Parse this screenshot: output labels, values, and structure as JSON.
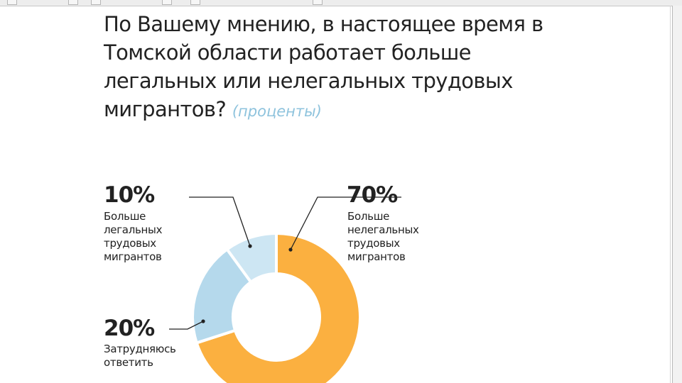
{
  "window": {
    "toolbar_icons": [
      "toolbar-icon",
      "toolbar-icon",
      "toolbar-icon",
      "toolbar-icon",
      "toolbar-icon",
      "toolbar-icon"
    ]
  },
  "slide": {
    "title": "По Вашему мнению, в настоящее время в Томской области работает больше легальных или нелегальных трудовых мигрантов?",
    "unit": "(проценты)"
  },
  "chart_data": {
    "type": "pie",
    "style": "donut",
    "title": "По Вашему мнению, в настоящее время в Томской области работает больше легальных или нелегальных трудовых мигрантов?",
    "unit": "(проценты)",
    "slices": [
      {
        "label": "Больше нелегальных трудовых мигрантов",
        "value": 70,
        "display": "70%",
        "color": "#fbb040"
      },
      {
        "label": "Затрудняюсь ответить",
        "value": 20,
        "display": "20%",
        "color": "#b5d9ec"
      },
      {
        "label": "Больше легальных трудовых мигрантов",
        "value": 10,
        "display": "10%",
        "color": "#cde6f3"
      }
    ],
    "start_angle_deg": 0,
    "direction": "clockwise",
    "label_text": [
      "Больше\nнелегальных\nтрудовых\nмигрантов",
      "Затрудняюсь\nответить",
      "Больше\nлегальных\nтрудовых\nмигрантов"
    ]
  }
}
